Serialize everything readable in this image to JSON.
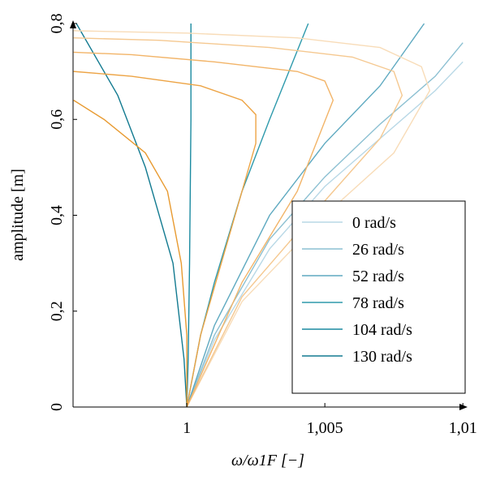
{
  "chart_data": {
    "type": "line",
    "xlabel": "ω/ω1F [−]",
    "ylabel": "amplitude [m]",
    "xlim": [
      0.99588,
      1.0102
    ],
    "ylim": [
      0,
      0.8
    ],
    "xticks": [
      1,
      {
        "value": 1.005,
        "label": "1,005"
      },
      {
        "value": 1.01,
        "label": "1,01"
      }
    ],
    "yticks": [
      0,
      {
        "value": 0.2,
        "label": "0,2"
      },
      {
        "value": 0.4,
        "label": "0,4"
      },
      {
        "value": 0.6,
        "label": "0,6"
      },
      {
        "value": 0.8,
        "label": "0,8"
      }
    ],
    "grid": false,
    "legend": "lower right",
    "series": [
      {
        "name": "0 rad/s",
        "color": "#b8d8e6",
        "x": [
          1,
          1.001,
          1.003,
          1.005,
          1.007,
          1.009,
          1.01
        ],
        "values": [
          0,
          0.14,
          0.33,
          0.46,
          0.56,
          0.66,
          0.72
        ]
      },
      {
        "name": "26 rad/s",
        "color": "#8cc0d2",
        "x": [
          1,
          1.001,
          1.003,
          1.005,
          1.007,
          1.009,
          1.01
        ],
        "values": [
          0,
          0.15,
          0.35,
          0.48,
          0.59,
          0.69,
          0.76
        ]
      },
      {
        "name": "52 rad/s",
        "color": "#5ea9c0",
        "x": [
          1,
          1.001,
          1.003,
          1.005,
          1.007,
          1.0086
        ],
        "values": [
          0,
          0.17,
          0.4,
          0.55,
          0.67,
          0.8
        ]
      },
      {
        "name": "78 rad/s",
        "color": "#2e9aac",
        "x": [
          1,
          1.0005,
          1.001,
          1.002,
          1.003,
          1.0044
        ],
        "values": [
          0,
          0.15,
          0.26,
          0.45,
          0.6,
          0.8
        ]
      },
      {
        "name": "104 rad/s",
        "color": "#1a8aa0",
        "x": [
          1,
          1.00005,
          1.0001,
          1.00015,
          1.00015
        ],
        "values": [
          0,
          0.1,
          0.3,
          0.6,
          0.8
        ]
      },
      {
        "name": "130 rad/s",
        "color": "#127a90",
        "x": [
          1,
          0.9999,
          0.9995,
          0.9985,
          0.9975,
          0.996
        ],
        "values": [
          0,
          0.1,
          0.3,
          0.5,
          0.65,
          0.8
        ]
      },
      {
        "color": "#f8dcb8",
        "x": [
          1,
          1.002,
          1.005,
          1.0075,
          1.0088,
          1.0085,
          1.007,
          1.004,
          1.0,
          0.9959
        ],
        "values": [
          0,
          0.22,
          0.4,
          0.53,
          0.66,
          0.71,
          0.75,
          0.77,
          0.78,
          0.785
        ]
      },
      {
        "color": "#f5c890",
        "x": [
          1,
          1.002,
          1.005,
          1.007,
          1.0078,
          1.0075,
          1.006,
          1.003,
          0.999,
          0.9959
        ],
        "values": [
          0,
          0.23,
          0.43,
          0.56,
          0.65,
          0.7,
          0.73,
          0.75,
          0.765,
          0.77
        ]
      },
      {
        "color": "#f2b468",
        "x": [
          1,
          1.002,
          1.004,
          1.0053,
          1.005,
          1.004,
          1.001,
          0.998,
          0.9959
        ],
        "values": [
          0,
          0.26,
          0.45,
          0.64,
          0.68,
          0.7,
          0.72,
          0.735,
          0.74
        ]
      },
      {
        "color": "#eda445",
        "x": [
          1,
          1.0005,
          1.0015,
          1.0025,
          1.0025,
          1.002,
          1.0005,
          0.998,
          0.9959
        ],
        "values": [
          0,
          0.15,
          0.35,
          0.55,
          0.61,
          0.64,
          0.67,
          0.69,
          0.7
        ]
      },
      {
        "color": "#e89a30",
        "x": [
          1,
          1.0,
          0.9998,
          0.9993,
          0.9985,
          0.997,
          0.9959
        ],
        "values": [
          0,
          0.15,
          0.3,
          0.45,
          0.53,
          0.6,
          0.64
        ]
      }
    ]
  }
}
